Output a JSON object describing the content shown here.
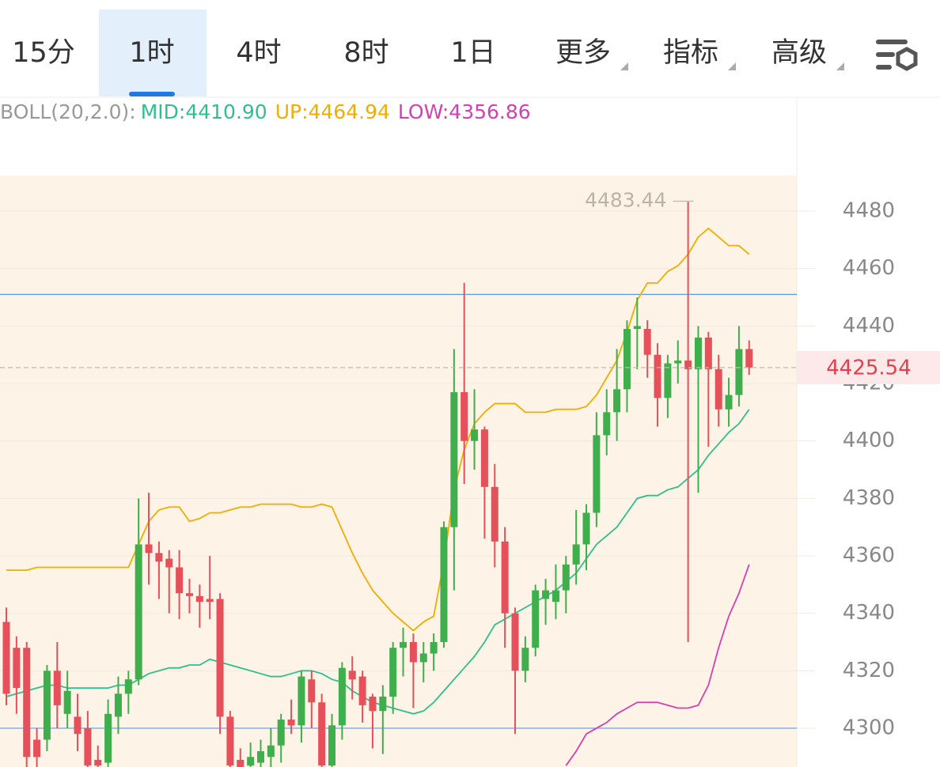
{
  "tabs": [
    "15分",
    "1时",
    "4时",
    "8时",
    "1日",
    "更多",
    "指标",
    "高级"
  ],
  "selected_tab": 1,
  "chart_data": {
    "type": "candlestick",
    "indicator": "BOLL(20,2.0):",
    "legend": [
      {
        "text": "MID:4410.90",
        "color": "#2fbf8f"
      },
      {
        "text": "UP:4464.94",
        "color": "#f2ad00"
      },
      {
        "text": "LOW:4356.86",
        "color": "#d63fb0"
      }
    ],
    "ylim": [
      4286.5,
      4492.4
    ],
    "yticks": [
      4300,
      4320,
      4340,
      4360,
      4380,
      4400,
      4420,
      4440,
      4460,
      4480
    ],
    "up_color": "#3fae4c",
    "down_color": "#e5505a",
    "ohlc": [
      [
        4337,
        4342,
        4308,
        4312
      ],
      [
        4328,
        4332,
        4305,
        4314
      ],
      [
        4328,
        4330,
        4286,
        4290
      ],
      [
        4296,
        4300,
        4286,
        4290
      ],
      [
        4296,
        4322,
        4292,
        4320
      ],
      [
        4320,
        4330,
        4300,
        4308
      ],
      [
        4305,
        4320,
        4300,
        4313
      ],
      [
        4304,
        4312,
        4292,
        4298
      ],
      [
        4300,
        4306,
        4286,
        4287
      ],
      [
        4289,
        4294,
        4286,
        4287
      ],
      [
        4288,
        4310,
        4286,
        4305
      ],
      [
        4304,
        4318,
        4298,
        4312
      ],
      [
        4312,
        4320,
        4305,
        4317
      ],
      [
        4317,
        4380,
        4315,
        4364
      ],
      [
        4364,
        4382,
        4350,
        4361
      ],
      [
        4361,
        4365,
        4345,
        4358
      ],
      [
        4359,
        4362,
        4340,
        4356
      ],
      [
        4356,
        4362,
        4338,
        4347
      ],
      [
        4347,
        4352,
        4340,
        4346
      ],
      [
        4346,
        4350,
        4335,
        4344
      ],
      [
        4345,
        4360,
        4338,
        4344
      ],
      [
        4345,
        4347,
        4298,
        4304
      ],
      [
        4304,
        4306,
        4286,
        4287
      ],
      [
        4289,
        4293,
        4286,
        4286
      ],
      [
        4287,
        4295,
        4286,
        4290
      ],
      [
        4288,
        4296,
        4286,
        4292
      ],
      [
        4290,
        4300,
        4286,
        4294
      ],
      [
        4294,
        4305,
        4288,
        4303
      ],
      [
        4303,
        4310,
        4298,
        4301
      ],
      [
        4301,
        4320,
        4295,
        4318
      ],
      [
        4317,
        4320,
        4300,
        4309
      ],
      [
        4309,
        4312,
        4286,
        4287
      ],
      [
        4287,
        4305,
        4286,
        4301
      ],
      [
        4301,
        4323,
        4296,
        4321
      ],
      [
        4320,
        4325,
        4310,
        4317
      ],
      [
        4318,
        4320,
        4302,
        4308
      ],
      [
        4311,
        4312,
        4293,
        4306
      ],
      [
        4306,
        4315,
        4291,
        4311
      ],
      [
        4311,
        4330,
        4305,
        4328
      ],
      [
        4328,
        4335,
        4318,
        4330
      ],
      [
        4330,
        4333,
        4307,
        4323
      ],
      [
        4323,
        4330,
        4316,
        4326
      ],
      [
        4326,
        4333,
        4320,
        4330
      ],
      [
        4330,
        4372,
        4328,
        4370
      ],
      [
        4370,
        4432,
        4348,
        4417
      ],
      [
        4417,
        4455,
        4385,
        4400
      ],
      [
        4400,
        4418,
        4390,
        4404
      ],
      [
        4404,
        4405,
        4366,
        4384
      ],
      [
        4384,
        4392,
        4356,
        4365
      ],
      [
        4365,
        4370,
        4328,
        4340
      ],
      [
        4340,
        4342,
        4298,
        4320
      ],
      [
        4320,
        4332,
        4316,
        4328
      ],
      [
        4328,
        4350,
        4325,
        4348
      ],
      [
        4345,
        4352,
        4336,
        4348
      ],
      [
        4344,
        4357,
        4338,
        4348
      ],
      [
        4348,
        4360,
        4340,
        4357
      ],
      [
        4357,
        4376,
        4350,
        4364
      ],
      [
        4364,
        4378,
        4355,
        4375
      ],
      [
        4375,
        4410,
        4370,
        4402
      ],
      [
        4402,
        4418,
        4395,
        4410
      ],
      [
        4410,
        4432,
        4400,
        4418
      ],
      [
        4418,
        4442,
        4410,
        4439
      ],
      [
        4439,
        4450,
        4425,
        4440
      ],
      [
        4439,
        4442,
        4422,
        4430
      ],
      [
        4430,
        4434,
        4405,
        4415
      ],
      [
        4415,
        4430,
        4408,
        4427
      ],
      [
        4427,
        4435,
        4420,
        4428
      ],
      [
        4428,
        4483.44,
        4330,
        4425
      ],
      [
        4425,
        4440,
        4382,
        4436
      ],
      [
        4436,
        4438,
        4398,
        4425
      ],
      [
        4425,
        4430,
        4405,
        4411
      ],
      [
        4411,
        4422,
        4405,
        4416
      ],
      [
        4416,
        4440,
        4412,
        4432
      ],
      [
        4432,
        4435,
        4423,
        4425.54
      ]
    ],
    "bands": [
      {
        "color": "#f2ad00",
        "values": [
          4355,
          4355,
          4355,
          4356,
          4356,
          4356,
          4356,
          4356,
          4356,
          4356,
          4356,
          4356,
          4356,
          4364,
          4372,
          4376,
          4377,
          4377,
          4372,
          4373,
          4375,
          4375,
          4376,
          4377,
          4377,
          4378,
          4378,
          4378,
          4378,
          4377,
          4377,
          4378,
          4377,
          4369,
          4361,
          4354,
          4348,
          4344,
          4340,
          4337,
          4334,
          4337,
          4339,
          4358,
          4383,
          4397,
          4406,
          4410,
          4413,
          4413,
          4413,
          4410,
          4410,
          4410,
          4411,
          4411,
          4411,
          4412,
          4416,
          4422,
          4428,
          4438,
          4449,
          4455,
          4455,
          4459,
          4461,
          4465,
          4471,
          4474,
          4471,
          4468,
          4468,
          4465
        ]
      },
      {
        "color": "#2fbf8f",
        "values": [
          4311,
          4312,
          4313,
          4314,
          4315,
          4315,
          4314,
          4314,
          4314,
          4314,
          4314,
          4315,
          4315,
          4317,
          4319,
          4320,
          4321,
          4321,
          4322,
          4322,
          4324,
          4323,
          4322,
          4321,
          4320,
          4319,
          4318,
          4318,
          4319,
          4320,
          4320,
          4319,
          4317,
          4316,
          4313,
          4311,
          4309,
          4308,
          4307,
          4306,
          4305,
          4306,
          4309,
          4313,
          4317,
          4321,
          4325,
          4330,
          4336,
          4338,
          4340,
          4342,
          4344,
          4346,
          4348,
          4351,
          4354,
          4359,
          4364,
          4367,
          4370,
          4375,
          4380,
          4381,
          4381,
          4383,
          4384,
          4387,
          4390,
          4395,
          4399,
          4403,
          4406,
          4411
        ]
      },
      {
        "color": "#d63fb0",
        "values": [
          null,
          null,
          null,
          null,
          null,
          null,
          null,
          null,
          null,
          null,
          null,
          null,
          null,
          null,
          null,
          null,
          null,
          null,
          null,
          null,
          null,
          null,
          null,
          null,
          null,
          null,
          null,
          null,
          null,
          null,
          null,
          null,
          null,
          null,
          null,
          null,
          null,
          null,
          null,
          null,
          null,
          null,
          null,
          null,
          null,
          null,
          null,
          null,
          null,
          null,
          null,
          null,
          null,
          null,
          null,
          4287,
          4292,
          4298,
          4300,
          4302,
          4305,
          4307,
          4309,
          4309,
          4309,
          4308,
          4307,
          4307,
          4308,
          4315,
          4328,
          4339,
          4347,
          4357
        ]
      }
    ],
    "hlines": [
      4451,
      4300
    ],
    "hline_color": "#5b9be0",
    "high_marker": 4483.44,
    "high_marker_index": 67,
    "last_price": 4425.54
  }
}
